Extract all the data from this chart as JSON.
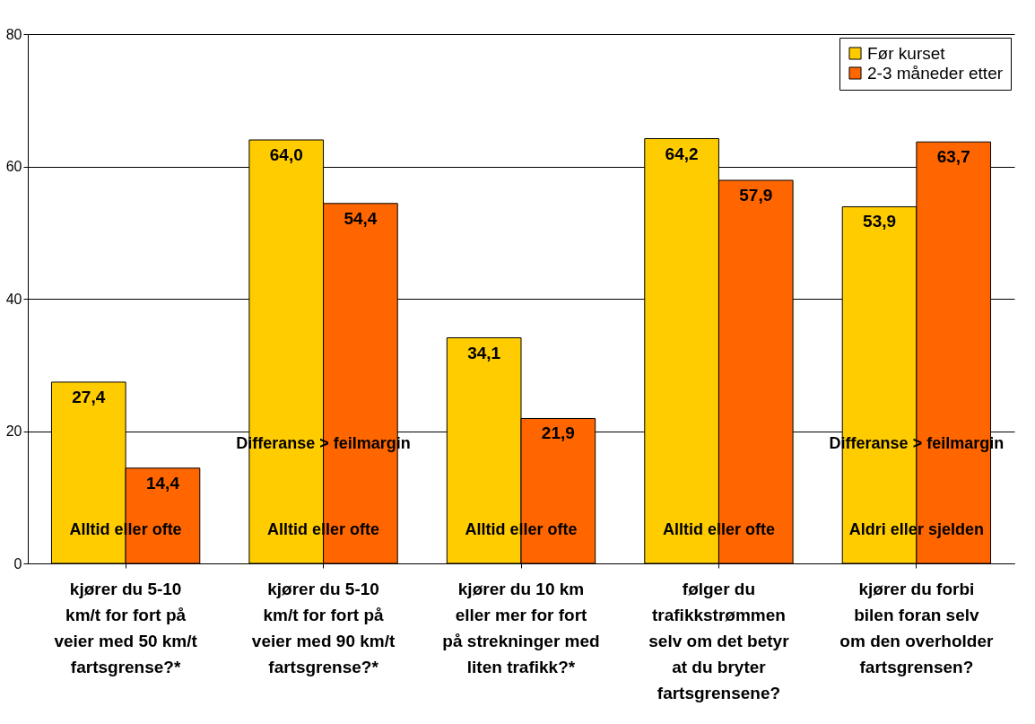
{
  "chart_data": {
    "type": "bar",
    "categories": [
      "kjører du 5-10 km/t for fort på veier med 50 km/t fartsgrense?*",
      "kjører du 5-10 km/t for fort på veier med 90 km/t fartsgrense?*",
      "kjører du 10 km eller mer for fort på strekninger med liten trafikk?*",
      "følger du trafikkstrømmen selv om det betyr at du bryter fartsgrensene?",
      "kjører du forbi bilen foran selv om den overholder fartsgrensen?"
    ],
    "series": [
      {
        "name": "Før kurset",
        "color": "#ffcc00",
        "values": [
          27.4,
          64.0,
          34.1,
          64.2,
          53.9
        ],
        "value_labels": [
          "27,4",
          "64,0",
          "34,1",
          "64,2",
          "53,9"
        ]
      },
      {
        "name": "2-3 måneder etter",
        "color": "#ff6600",
        "values": [
          14.4,
          54.4,
          21.9,
          57.9,
          63.7
        ],
        "value_labels": [
          "14,4",
          "54,4",
          "21,9",
          "57,9",
          "63,7"
        ]
      }
    ],
    "ylim": [
      0,
      80
    ],
    "yticks": [
      0,
      20,
      40,
      60,
      80
    ],
    "grid": "y",
    "legend": "top right",
    "annotations": [
      {
        "text": "Differanse > feilmargin",
        "x": "kjører du 5-10 km/t for fort på veier med 90 km/t fartsgrense?*",
        "y": 18
      },
      {
        "text": "Differanse > feilmargin",
        "x": "kjører du forbi bilen foran selv om den overholder fartsgrensen?",
        "y": 18
      },
      {
        "text": "Alltid eller ofte",
        "x": "kjører du 5-10 km/t for fort på veier med 50 km/t fartsgrense?*",
        "y": 5
      },
      {
        "text": "Alltid eller ofte",
        "x": "kjører du 5-10 km/t for fort på veier med 90 km/t fartsgrense?*",
        "y": 5
      },
      {
        "text": "Alltid eller ofte",
        "x": "kjører du 10 km eller mer for fort på strekninger med liten trafikk?*",
        "y": 5
      },
      {
        "text": "Alltid eller ofte",
        "x": "følger du trafikkstrømmen selv om det betyr at du bryter fartsgrensene?",
        "y": 5
      },
      {
        "text": "Aldri eller sjelden",
        "x": "kjører du forbi bilen foran selv om den overholder fartsgrensen?",
        "y": 5
      }
    ]
  }
}
